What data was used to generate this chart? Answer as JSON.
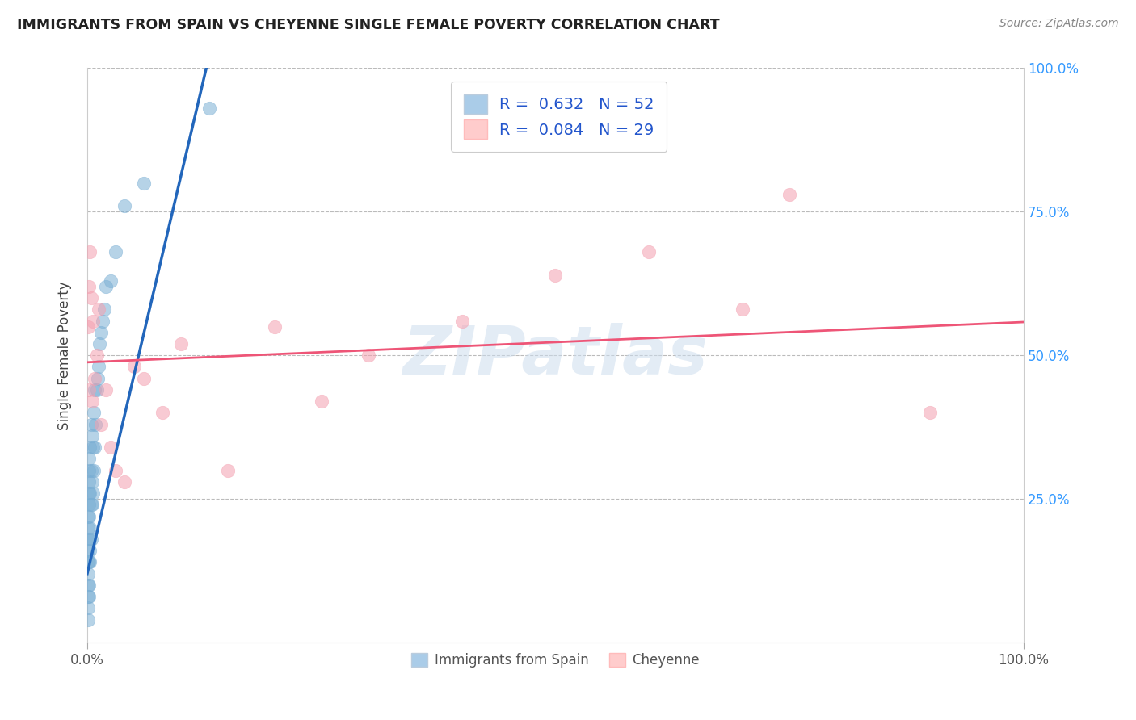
{
  "title": "IMMIGRANTS FROM SPAIN VS CHEYENNE SINGLE FEMALE POVERTY CORRELATION CHART",
  "source": "Source: ZipAtlas.com",
  "ylabel": "Single Female Poverty",
  "xlim": [
    0.0,
    1.0
  ],
  "ylim": [
    0.0,
    1.0
  ],
  "xtick_vals": [
    0.0,
    1.0
  ],
  "xtick_labels": [
    "0.0%",
    "100.0%"
  ],
  "ytick_vals": [
    0.25,
    0.5,
    0.75,
    1.0
  ],
  "ytick_labels_right": [
    "25.0%",
    "50.0%",
    "75.0%",
    "100.0%"
  ],
  "blue_color": "#7BAFD4",
  "pink_color": "#F4A0B0",
  "blue_fill_color": "#AACCE8",
  "pink_fill_color": "#FFCCCC",
  "blue_line_color": "#2266BB",
  "pink_line_color": "#EE5577",
  "blue_R": 0.632,
  "blue_N": 52,
  "pink_R": 0.084,
  "pink_N": 29,
  "watermark_text": "ZIPatlas",
  "legend_label_blue": "Immigrants from Spain",
  "legend_label_pink": "Cheyenne",
  "blue_scatter_x": [
    0.001,
    0.001,
    0.001,
    0.001,
    0.001,
    0.001,
    0.001,
    0.001,
    0.001,
    0.001,
    0.002,
    0.002,
    0.002,
    0.002,
    0.002,
    0.002,
    0.002,
    0.002,
    0.002,
    0.002,
    0.003,
    0.003,
    0.003,
    0.003,
    0.003,
    0.004,
    0.004,
    0.004,
    0.004,
    0.005,
    0.005,
    0.005,
    0.006,
    0.006,
    0.007,
    0.007,
    0.008,
    0.008,
    0.009,
    0.01,
    0.011,
    0.012,
    0.013,
    0.015,
    0.016,
    0.018,
    0.02,
    0.025,
    0.03,
    0.04,
    0.06,
    0.13
  ],
  "blue_scatter_y": [
    0.04,
    0.06,
    0.08,
    0.1,
    0.12,
    0.14,
    0.16,
    0.18,
    0.2,
    0.22,
    0.08,
    0.1,
    0.14,
    0.18,
    0.22,
    0.24,
    0.26,
    0.28,
    0.3,
    0.32,
    0.14,
    0.16,
    0.2,
    0.26,
    0.34,
    0.18,
    0.24,
    0.3,
    0.38,
    0.24,
    0.28,
    0.36,
    0.26,
    0.34,
    0.3,
    0.4,
    0.34,
    0.44,
    0.38,
    0.44,
    0.46,
    0.48,
    0.52,
    0.54,
    0.56,
    0.58,
    0.62,
    0.63,
    0.68,
    0.76,
    0.8,
    0.93
  ],
  "pink_scatter_x": [
    0.001,
    0.002,
    0.002,
    0.003,
    0.004,
    0.005,
    0.006,
    0.008,
    0.01,
    0.012,
    0.015,
    0.02,
    0.025,
    0.03,
    0.04,
    0.05,
    0.06,
    0.08,
    0.1,
    0.15,
    0.2,
    0.25,
    0.3,
    0.4,
    0.5,
    0.6,
    0.7,
    0.75,
    0.9
  ],
  "pink_scatter_y": [
    0.55,
    0.44,
    0.62,
    0.68,
    0.6,
    0.42,
    0.56,
    0.46,
    0.5,
    0.58,
    0.38,
    0.44,
    0.34,
    0.3,
    0.28,
    0.48,
    0.46,
    0.4,
    0.52,
    0.3,
    0.55,
    0.42,
    0.5,
    0.56,
    0.64,
    0.68,
    0.58,
    0.78,
    0.4
  ],
  "blue_trendline_x": [
    0.0,
    0.13
  ],
  "blue_trendline_y": [
    0.12,
    1.02
  ],
  "pink_trendline_x": [
    0.0,
    1.0
  ],
  "pink_trendline_y": [
    0.488,
    0.558
  ]
}
